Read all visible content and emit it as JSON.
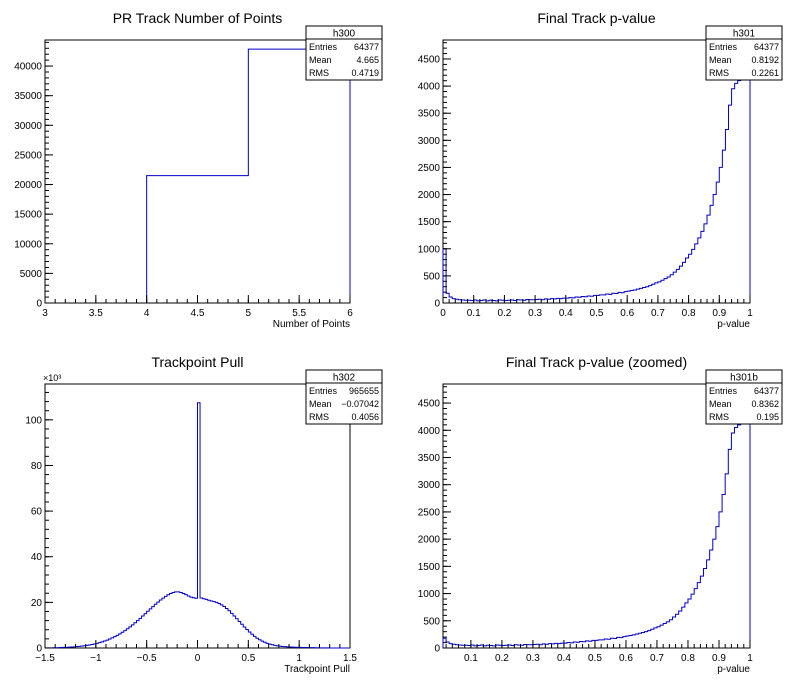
{
  "chart_data": [
    {
      "type": "histogram",
      "title": "PR Track Number of Points",
      "xlabel": "Number of Points",
      "ylabel": "",
      "xlim": [
        3,
        6
      ],
      "ylim": [
        0,
        44400
      ],
      "xticks": [
        3,
        3.5,
        4,
        4.5,
        5,
        5.5,
        6
      ],
      "xtick_labels": [
        "3",
        "3.5",
        "4",
        "4.5",
        "5",
        "5.5",
        "6"
      ],
      "yticks": [
        0,
        5000,
        10000,
        15000,
        20000,
        25000,
        30000,
        35000,
        40000
      ],
      "ytick_labels": [
        "0",
        "5000",
        "10000",
        "15000",
        "20000",
        "25000",
        "30000",
        "35000",
        "40000"
      ],
      "y_exponent_label": "",
      "bins": [
        [
          4,
          5,
          21500
        ],
        [
          5,
          6,
          42850
        ]
      ],
      "color": "#0000cc",
      "stats": {
        "name": "h300",
        "rows": [
          {
            "label": "Entries",
            "value": "64377"
          },
          {
            "label": "Mean",
            "value": "4.665"
          },
          {
            "label": "RMS",
            "value": "0.4719"
          }
        ]
      }
    },
    {
      "type": "histogram",
      "title": "Final Track p-value",
      "xlabel": "p-value",
      "ylabel": "",
      "xlim": [
        0,
        1
      ],
      "ylim": [
        0,
        4850
      ],
      "xticks": [
        0,
        0.1,
        0.2,
        0.3,
        0.4,
        0.5,
        0.6,
        0.7,
        0.8,
        0.9,
        1
      ],
      "xtick_labels": [
        "0",
        "0.1",
        "0.2",
        "0.3",
        "0.4",
        "0.5",
        "0.6",
        "0.7",
        "0.8",
        "0.9",
        "1"
      ],
      "yticks": [
        0,
        500,
        1000,
        1500,
        2000,
        2500,
        3000,
        3500,
        4000,
        4500
      ],
      "ytick_labels": [
        "0",
        "500",
        "1000",
        "1500",
        "2000",
        "2500",
        "3000",
        "3500",
        "4000",
        "4500"
      ],
      "y_exponent_label": "",
      "bin_start": 0,
      "bin_width": 0.01,
      "counts": [
        1000,
        180,
        110,
        80,
        70,
        60,
        55,
        50,
        50,
        45,
        55,
        40,
        45,
        55,
        40,
        50,
        45,
        40,
        55,
        50,
        45,
        50,
        55,
        45,
        60,
        55,
        50,
        65,
        60,
        60,
        65,
        70,
        60,
        75,
        70,
        80,
        75,
        85,
        80,
        90,
        90,
        100,
        95,
        110,
        105,
        120,
        115,
        130,
        125,
        140,
        140,
        150,
        150,
        165,
        160,
        180,
        175,
        195,
        190,
        210,
        220,
        230,
        240,
        255,
        270,
        285,
        300,
        320,
        345,
        370,
        390,
        420,
        450,
        480,
        520,
        570,
        620,
        680,
        750,
        830,
        900,
        990,
        1090,
        1200,
        1320,
        1460,
        1620,
        1800,
        2000,
        2230,
        2500,
        2820,
        3200,
        3650,
        3950,
        4050,
        4100,
        4120,
        4130,
        4150
      ],
      "color": "#0000cc",
      "stats": {
        "name": "h301",
        "rows": [
          {
            "label": "Entries",
            "value": "64377"
          },
          {
            "label": "Mean",
            "value": "0.8192"
          },
          {
            "label": "RMS",
            "value": "0.2261"
          }
        ]
      }
    },
    {
      "type": "histogram",
      "title": "Trackpoint Pull",
      "xlabel": "Trackpoint Pull",
      "ylabel": "",
      "xlim": [
        -1.5,
        1.5
      ],
      "ylim": [
        0,
        115700
      ],
      "xticks": [
        -1.5,
        -1,
        -0.5,
        0,
        0.5,
        1,
        1.5
      ],
      "xtick_labels": [
        "−1.5",
        "−1",
        "−0.5",
        "0",
        "0.5",
        "1",
        "1.5"
      ],
      "yticks": [
        0,
        20000,
        40000,
        60000,
        80000,
        100000
      ],
      "ytick_labels": [
        "0",
        "20",
        "40",
        "60",
        "80",
        "100"
      ],
      "y_exponent_label": "×10³",
      "bin_start": -1.5,
      "bin_width": 0.025,
      "counts": [
        40,
        60,
        80,
        100,
        130,
        160,
        200,
        250,
        300,
        360,
        430,
        510,
        600,
        700,
        830,
        970,
        1130,
        1320,
        1530,
        1770,
        2040,
        2340,
        2670,
        3050,
        3460,
        3920,
        4420,
        4970,
        5560,
        6200,
        6900,
        7640,
        8430,
        9260,
        10140,
        11060,
        12010,
        13000,
        14010,
        15040,
        16080,
        17120,
        18150,
        19160,
        20120,
        21030,
        21880,
        22640,
        23310,
        23870,
        24300,
        24600,
        24600,
        24300,
        23900,
        23400,
        22800,
        22300,
        22000,
        21800,
        107500,
        21900,
        21600,
        21300,
        20900,
        20600,
        20300,
        20000,
        19500,
        18900,
        18200,
        17300,
        16300,
        15200,
        14000,
        12800,
        11600,
        10400,
        9200,
        8100,
        7000,
        6000,
        5100,
        4300,
        3600,
        3000,
        2500,
        2050,
        1700,
        1400,
        1150,
        950,
        800,
        680,
        580,
        500,
        430,
        370,
        320,
        280,
        250,
        220,
        200,
        180,
        160,
        140,
        120,
        100,
        80,
        60,
        40,
        30,
        20,
        15,
        10,
        8,
        6,
        4,
        2,
        1
      ],
      "color": "#0000cc",
      "stats": {
        "name": "h302",
        "rows": [
          {
            "label": "Entries",
            "value": "965655"
          },
          {
            "label": "Mean",
            "value": "−0.07042"
          },
          {
            "label": "RMS",
            "value": "0.4056"
          }
        ]
      }
    },
    {
      "type": "histogram",
      "title": "Final Track p-value (zoomed)",
      "xlabel": "p-value",
      "ylabel": "",
      "xlim": [
        0.01,
        1
      ],
      "ylim": [
        0,
        4850
      ],
      "xticks": [
        0.1,
        0.2,
        0.3,
        0.4,
        0.5,
        0.6,
        0.7,
        0.8,
        0.9,
        1
      ],
      "xtick_labels": [
        "0.1",
        "0.2",
        "0.3",
        "0.4",
        "0.5",
        "0.6",
        "0.7",
        "0.8",
        "0.9",
        "1"
      ],
      "yticks": [
        0,
        500,
        1000,
        1500,
        2000,
        2500,
        3000,
        3500,
        4000,
        4500
      ],
      "ytick_labels": [
        "0",
        "500",
        "1000",
        "1500",
        "2000",
        "2500",
        "3000",
        "3500",
        "4000",
        "4500"
      ],
      "y_exponent_label": "",
      "bin_start": 0.01,
      "bin_width": 0.01,
      "counts": [
        180,
        110,
        80,
        70,
        60,
        55,
        50,
        50,
        45,
        55,
        40,
        45,
        55,
        40,
        50,
        45,
        40,
        55,
        50,
        45,
        50,
        55,
        45,
        60,
        55,
        50,
        65,
        60,
        60,
        65,
        70,
        60,
        75,
        70,
        80,
        75,
        85,
        80,
        90,
        90,
        100,
        95,
        110,
        105,
        120,
        115,
        130,
        125,
        140,
        140,
        150,
        150,
        165,
        160,
        180,
        175,
        195,
        190,
        210,
        220,
        230,
        240,
        255,
        270,
        285,
        300,
        320,
        345,
        370,
        390,
        420,
        450,
        480,
        520,
        570,
        620,
        680,
        750,
        830,
        900,
        990,
        1090,
        1200,
        1320,
        1460,
        1620,
        1800,
        2000,
        2230,
        2500,
        2820,
        3200,
        3650,
        3950,
        4050,
        4100,
        4120,
        4130,
        4150
      ],
      "color": "#0000cc",
      "stats": {
        "name": "h301b",
        "rows": [
          {
            "label": "Entries",
            "value": "64377"
          },
          {
            "label": "Mean",
            "value": "0.8362"
          },
          {
            "label": "RMS",
            "value": "0.195"
          }
        ]
      }
    }
  ]
}
